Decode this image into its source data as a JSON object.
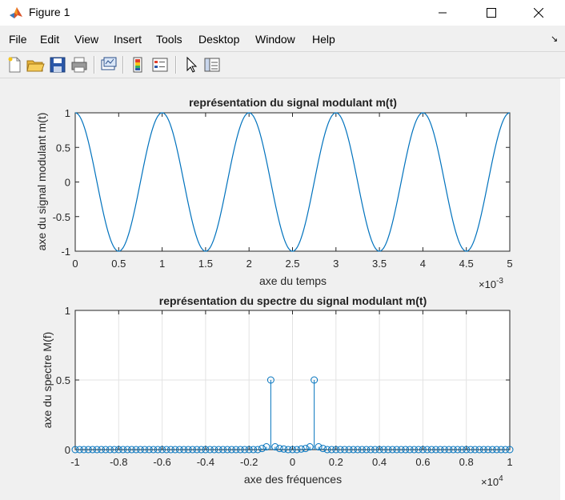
{
  "window": {
    "title": "Figure 1",
    "controls": [
      "minimize",
      "maximize",
      "close"
    ]
  },
  "menu": [
    "File",
    "Edit",
    "View",
    "Insert",
    "Tools",
    "Desktop",
    "Window",
    "Help"
  ],
  "toolbar": [
    "new-figure-icon",
    "open-file-icon",
    "save-icon",
    "print-icon",
    "link-plot-icon",
    "insert-colorbar-icon",
    "insert-legend-icon",
    "edit-plot-arrow-icon",
    "property-inspector-icon"
  ],
  "colors": {
    "line": "#0072BD",
    "axes_bg": "#ffffff",
    "figure_bg": "#f0f0f0",
    "grid": "#e3e3e3"
  },
  "chart_data": [
    {
      "type": "line",
      "title": "représentation du signal modulant m(t)",
      "xlabel": "axe du temps",
      "ylabel": "axe du signal modulant m(t)",
      "x_exponent_label": "×10",
      "x_exponent_power": "-3",
      "xlim": [
        0,
        0.005
      ],
      "ylim": [
        -1,
        1
      ],
      "xticks": [
        0,
        0.5,
        1,
        1.5,
        2,
        2.5,
        3,
        3.5,
        4,
        4.5,
        5
      ],
      "xtick_labels": [
        "0",
        "0.5",
        "1",
        "1.5",
        "2",
        "2.5",
        "3",
        "3.5",
        "4",
        "4.5",
        "5"
      ],
      "ytick_labels": [
        "-1",
        "-0.5",
        "0",
        "0.5",
        "1"
      ],
      "yticks": [
        -1,
        -0.5,
        0,
        0.5,
        1
      ],
      "grid": false,
      "series": [
        {
          "function": "cos(2*pi*1000*t)",
          "frequency_hz": 1000,
          "amplitude": 1,
          "t_start": 0,
          "t_end": 0.005
        }
      ]
    },
    {
      "type": "stem",
      "title": "représentation du spectre du signal modulant m(t)",
      "xlabel": "axe des fréquences",
      "ylabel": "axe du spectre M(f)",
      "x_exponent_label": "×10",
      "x_exponent_power": "4",
      "xlim": [
        -10000,
        10000
      ],
      "ylim": [
        0,
        1
      ],
      "xticks": [
        -1,
        -0.8,
        -0.6,
        -0.4,
        -0.2,
        0,
        0.2,
        0.4,
        0.6,
        0.8,
        1
      ],
      "xtick_labels": [
        "-1",
        "-0.8",
        "-0.6",
        "-0.4",
        "-0.2",
        "0",
        "0.2",
        "0.4",
        "0.6",
        "0.8",
        "1"
      ],
      "yticks": [
        0,
        0.5,
        1
      ],
      "ytick_labels": [
        "0",
        "0.5",
        "1"
      ],
      "grid": true,
      "series": [
        {
          "f_start": -10000,
          "f_step": 200,
          "count": 101,
          "peaks": [
            {
              "f": -1000,
              "value": 0.5
            },
            {
              "f": 1000,
              "value": 0.5
            }
          ],
          "small": [
            {
              "f": -1200,
              "value": 0.02
            },
            {
              "f": -800,
              "value": 0.02
            },
            {
              "f": 800,
              "value": 0.02
            },
            {
              "f": 1200,
              "value": 0.02
            },
            {
              "f": -1400,
              "value": 0.008
            },
            {
              "f": -600,
              "value": 0.008
            },
            {
              "f": 600,
              "value": 0.008
            },
            {
              "f": 1400,
              "value": 0.008
            },
            {
              "f": -400,
              "value": 0.004
            },
            {
              "f": 400,
              "value": 0.004
            }
          ]
        }
      ]
    }
  ]
}
